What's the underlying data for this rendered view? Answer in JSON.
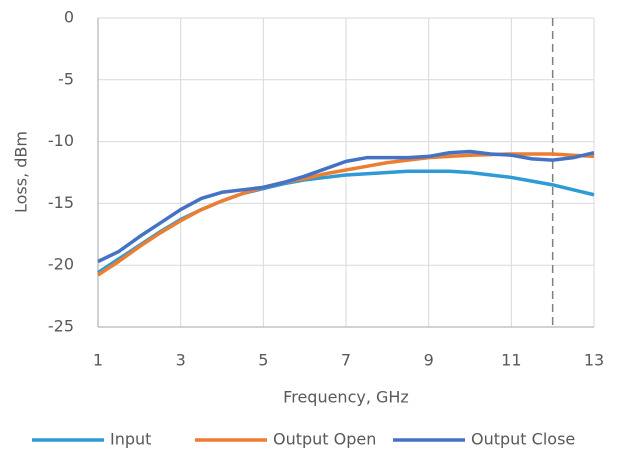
{
  "chart_data": {
    "type": "line",
    "x_label": "Frequency, GHz",
    "y_label": "Loss, dBm",
    "x": [
      1,
      1.5,
      2,
      2.5,
      3,
      3.5,
      4,
      4.5,
      5,
      5.5,
      6,
      6.5,
      7,
      7.5,
      8,
      8.5,
      9,
      9.5,
      10,
      10.5,
      11,
      11.5,
      12,
      12.5,
      13
    ],
    "series": [
      {
        "name": "Input",
        "color": "#2e9bd6",
        "values": [
          -20.6,
          -19.5,
          -18.4,
          -17.3,
          -16.3,
          -15.5,
          -14.8,
          -14.2,
          -13.8,
          -13.4,
          -13.1,
          -12.9,
          -12.7,
          -12.6,
          -12.5,
          -12.4,
          -12.4,
          -12.4,
          -12.5,
          -12.7,
          -12.9,
          -13.2,
          -13.5,
          -13.9,
          -14.3
        ]
      },
      {
        "name": "Output Open",
        "color": "#ed7d31",
        "values": [
          -20.8,
          -19.7,
          -18.5,
          -17.4,
          -16.4,
          -15.5,
          -14.8,
          -14.2,
          -13.7,
          -13.3,
          -13.0,
          -12.6,
          -12.3,
          -12.0,
          -11.7,
          -11.5,
          -11.3,
          -11.2,
          -11.1,
          -11.05,
          -11.0,
          -11.0,
          -11.0,
          -11.1,
          -11.2
        ]
      },
      {
        "name": "Output Close",
        "color": "#4472c4",
        "values": [
          -19.7,
          -18.9,
          -17.7,
          -16.6,
          -15.5,
          -14.6,
          -14.1,
          -13.9,
          -13.7,
          -13.3,
          -12.8,
          -12.2,
          -11.6,
          -11.3,
          -11.3,
          -11.3,
          -11.2,
          -10.9,
          -10.8,
          -11.0,
          -11.1,
          -11.4,
          -11.5,
          -11.3,
          -10.9
        ]
      }
    ],
    "xlim": [
      1,
      13
    ],
    "xticks": [
      1,
      3,
      5,
      7,
      9,
      11,
      13
    ],
    "ylim": [
      -25,
      0
    ],
    "yticks": [
      0,
      -5,
      -10,
      -15,
      -20,
      -25
    ],
    "grid": true,
    "vline": 12,
    "legend": "bottom"
  }
}
